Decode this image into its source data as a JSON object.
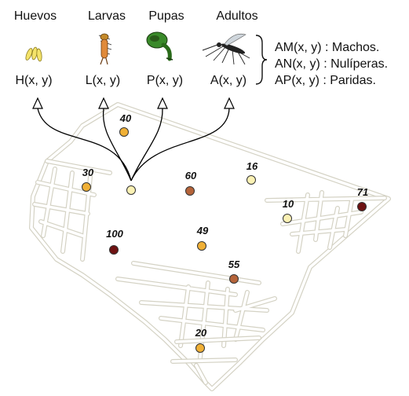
{
  "stages": [
    {
      "name": "Huevos",
      "func": "H(x, y)",
      "icon": "egg-cluster-icon"
    },
    {
      "name": "Larvas",
      "func": "L(x, y)",
      "icon": "larva-icon"
    },
    {
      "name": "Pupas",
      "func": "P(x, y)",
      "icon": "pupa-icon"
    },
    {
      "name": "Adultos",
      "func": "A(x, y)",
      "icon": "mosquito-icon"
    }
  ],
  "adult_classes": [
    "AM(x, y) : Machos.",
    "AN(x, y) : Nulíperas.",
    "AP(x, y) : Paridas."
  ],
  "points": [
    {
      "label": "40",
      "color": "#f0b036"
    },
    {
      "label": "30",
      "color": "#f0b036"
    },
    {
      "label": "",
      "color": "#fbf1b4"
    },
    {
      "label": "60",
      "color": "#b5643a"
    },
    {
      "label": "16",
      "color": "#fbf1b4"
    },
    {
      "label": "10",
      "color": "#fbf1b4"
    },
    {
      "label": "71",
      "color": "#6e1212"
    },
    {
      "label": "100",
      "color": "#6e1212"
    },
    {
      "label": "49",
      "color": "#f0b036"
    },
    {
      "label": "55",
      "color": "#b5643a"
    },
    {
      "label": "20",
      "color": "#f0b036"
    }
  ]
}
